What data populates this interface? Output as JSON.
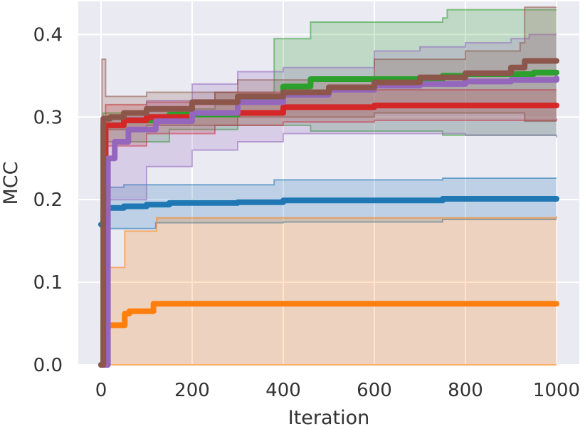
{
  "chart_data": {
    "type": "line",
    "title": "",
    "xlabel": "Iteration",
    "ylabel": "MCC",
    "xlim": [
      -50,
      1050
    ],
    "ylim": [
      0.0,
      0.44
    ],
    "xticks": [
      0,
      200,
      400,
      600,
      800,
      1000
    ],
    "yticks": [
      0.0,
      0.1,
      0.2,
      0.3,
      0.4
    ],
    "xtick_labels": [
      "0",
      "200",
      "400",
      "600",
      "800",
      "1000"
    ],
    "ytick_labels": [
      "0.0",
      "0.1",
      "0.2",
      "0.3",
      "0.4"
    ],
    "grid": true,
    "legend": "none",
    "series": [
      {
        "name": "blue",
        "color": "#1f77b4",
        "mean": [
          [
            0,
            0.17
          ],
          [
            5,
            0.19
          ],
          [
            50,
            0.192
          ],
          [
            100,
            0.194
          ],
          [
            150,
            0.196
          ],
          [
            300,
            0.197
          ],
          [
            400,
            0.199
          ],
          [
            750,
            0.201
          ],
          [
            1000,
            0.201
          ]
        ],
        "upper": [
          [
            0,
            0.19
          ],
          [
            10,
            0.215
          ],
          [
            50,
            0.218
          ],
          [
            380,
            0.224
          ],
          [
            750,
            0.226
          ],
          [
            1000,
            0.226
          ]
        ],
        "lower": [
          [
            0,
            0.15
          ],
          [
            10,
            0.165
          ],
          [
            120,
            0.172
          ],
          [
            400,
            0.173
          ],
          [
            750,
            0.176
          ],
          [
            1000,
            0.176
          ]
        ]
      },
      {
        "name": "orange",
        "color": "#ff7f0e",
        "mean": [
          [
            0,
            0.0
          ],
          [
            5,
            0.048
          ],
          [
            50,
            0.048
          ],
          [
            52,
            0.062
          ],
          [
            60,
            0.062
          ],
          [
            62,
            0.065
          ],
          [
            110,
            0.065
          ],
          [
            115,
            0.074
          ],
          [
            1000,
            0.074
          ]
        ],
        "upper": [
          [
            0,
            0.0
          ],
          [
            10,
            0.118
          ],
          [
            50,
            0.118
          ],
          [
            52,
            0.162
          ],
          [
            120,
            0.162
          ],
          [
            122,
            0.178
          ],
          [
            1000,
            0.18
          ]
        ],
        "lower": [
          [
            0,
            0.0
          ],
          [
            1000,
            0.0
          ]
        ]
      },
      {
        "name": "green",
        "color": "#2ca02c",
        "mean": [
          [
            0,
            0.0
          ],
          [
            5,
            0.29
          ],
          [
            50,
            0.296
          ],
          [
            150,
            0.303
          ],
          [
            300,
            0.32
          ],
          [
            400,
            0.337
          ],
          [
            460,
            0.346
          ],
          [
            750,
            0.35
          ],
          [
            800,
            0.352
          ],
          [
            950,
            0.354
          ],
          [
            1000,
            0.354
          ]
        ],
        "upper": [
          [
            0,
            0.0
          ],
          [
            5,
            0.305
          ],
          [
            100,
            0.31
          ],
          [
            250,
            0.33
          ],
          [
            380,
            0.395
          ],
          [
            460,
            0.415
          ],
          [
            750,
            0.42
          ],
          [
            760,
            0.43
          ],
          [
            1000,
            0.43
          ]
        ],
        "lower": [
          [
            0,
            0.0
          ],
          [
            5,
            0.27
          ],
          [
            150,
            0.285
          ],
          [
            300,
            0.29
          ],
          [
            400,
            0.29
          ],
          [
            460,
            0.283
          ],
          [
            750,
            0.278
          ],
          [
            1000,
            0.278
          ]
        ]
      },
      {
        "name": "red",
        "color": "#d62728",
        "mean": [
          [
            0,
            0.0
          ],
          [
            10,
            0.29
          ],
          [
            50,
            0.296
          ],
          [
            100,
            0.3
          ],
          [
            200,
            0.305
          ],
          [
            400,
            0.312
          ],
          [
            600,
            0.314
          ],
          [
            800,
            0.314
          ],
          [
            1000,
            0.314
          ]
        ],
        "upper": [
          [
            0,
            0.0
          ],
          [
            10,
            0.315
          ],
          [
            100,
            0.318
          ],
          [
            250,
            0.33
          ],
          [
            400,
            0.332
          ],
          [
            600,
            0.333
          ],
          [
            1000,
            0.333
          ]
        ],
        "lower": [
          [
            0,
            0.0
          ],
          [
            10,
            0.265
          ],
          [
            100,
            0.28
          ],
          [
            250,
            0.29
          ],
          [
            400,
            0.294
          ],
          [
            600,
            0.296
          ],
          [
            1000,
            0.298
          ]
        ]
      },
      {
        "name": "purple",
        "color": "#9467bd",
        "mean": [
          [
            0,
            0.0
          ],
          [
            15,
            0.25
          ],
          [
            30,
            0.27
          ],
          [
            60,
            0.285
          ],
          [
            120,
            0.295
          ],
          [
            200,
            0.305
          ],
          [
            300,
            0.318
          ],
          [
            400,
            0.327
          ],
          [
            500,
            0.333
          ],
          [
            600,
            0.338
          ],
          [
            700,
            0.34
          ],
          [
            800,
            0.343
          ],
          [
            900,
            0.345
          ],
          [
            1000,
            0.347
          ]
        ],
        "upper": [
          [
            0,
            0.0
          ],
          [
            15,
            0.3
          ],
          [
            100,
            0.32
          ],
          [
            200,
            0.34
          ],
          [
            300,
            0.355
          ],
          [
            400,
            0.36
          ],
          [
            600,
            0.38
          ],
          [
            700,
            0.385
          ],
          [
            800,
            0.39
          ],
          [
            900,
            0.395
          ],
          [
            940,
            0.4
          ],
          [
            1000,
            0.4
          ]
        ],
        "lower": [
          [
            0,
            0.0
          ],
          [
            15,
            0.2
          ],
          [
            100,
            0.24
          ],
          [
            200,
            0.26
          ],
          [
            300,
            0.27
          ],
          [
            400,
            0.28
          ],
          [
            600,
            0.28
          ],
          [
            800,
            0.278
          ],
          [
            1000,
            0.275
          ]
        ]
      },
      {
        "name": "brown",
        "color": "#8c564b",
        "mean": [
          [
            0,
            0.0
          ],
          [
            5,
            0.298
          ],
          [
            20,
            0.3
          ],
          [
            50,
            0.305
          ],
          [
            100,
            0.31
          ],
          [
            200,
            0.318
          ],
          [
            300,
            0.325
          ],
          [
            400,
            0.33
          ],
          [
            500,
            0.336
          ],
          [
            600,
            0.342
          ],
          [
            700,
            0.348
          ],
          [
            800,
            0.353
          ],
          [
            900,
            0.36
          ],
          [
            930,
            0.368
          ],
          [
            1000,
            0.368
          ]
        ],
        "upper": [
          [
            0,
            0.0
          ],
          [
            2,
            0.37
          ],
          [
            10,
            0.325
          ],
          [
            100,
            0.33
          ],
          [
            300,
            0.345
          ],
          [
            600,
            0.37
          ],
          [
            800,
            0.38
          ],
          [
            920,
            0.39
          ],
          [
            930,
            0.433
          ],
          [
            1000,
            0.433
          ]
        ],
        "lower": [
          [
            0,
            0.0
          ],
          [
            10,
            0.285
          ],
          [
            100,
            0.29
          ],
          [
            300,
            0.3
          ],
          [
            600,
            0.305
          ],
          [
            800,
            0.305
          ],
          [
            930,
            0.295
          ],
          [
            1000,
            0.295
          ]
        ]
      }
    ]
  }
}
